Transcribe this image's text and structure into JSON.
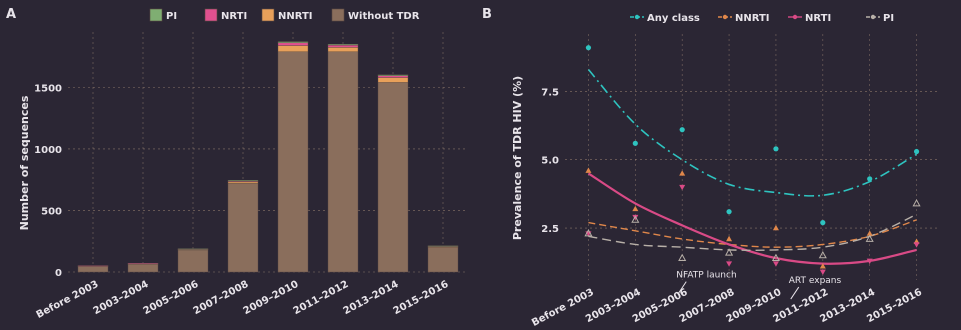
{
  "panels": {
    "a": {
      "letter": "A"
    },
    "b": {
      "letter": "B"
    }
  },
  "colors": {
    "background": "#2b2634",
    "plot_bg": "#2b2634",
    "grid": "#c8a98c",
    "text": "#e8e4ea",
    "pi": "#7fae72",
    "nrti": "#e0508f",
    "nnrti": "#e8a05a",
    "without_tdr": "#8a6e5c",
    "any_class": "#2ec4c0",
    "nnrti_line": "#e0874a",
    "nrti_line": "#d94a86",
    "pi_line": "#b8b0a8"
  },
  "chart_data": [
    {
      "type": "bar",
      "stacked": true,
      "ylabel": "Number of sequences",
      "xlabel": "",
      "ylim": [
        0,
        1950
      ],
      "yticks": [
        0,
        500,
        1000,
        1500
      ],
      "grid": true,
      "legend_position": "top",
      "categories": [
        "Before 2003",
        "2003–2004",
        "2005–2006",
        "2007–2008",
        "2009–2010",
        "2011–2012",
        "2013–2014",
        "2015–2016"
      ],
      "series": [
        {
          "name": "PI",
          "values": [
            0,
            0,
            2,
            5,
            10,
            8,
            8,
            2
          ]
        },
        {
          "name": "NRTI",
          "values": [
            1,
            1,
            3,
            8,
            22,
            18,
            15,
            4
          ]
        },
        {
          "name": "NNRTI",
          "values": [
            1,
            2,
            5,
            12,
            50,
            35,
            40,
            8
          ]
        },
        {
          "name": "Without TDR",
          "values": [
            50,
            68,
            180,
            720,
            1790,
            1790,
            1540,
            200
          ]
        }
      ]
    },
    {
      "type": "line",
      "ylabel": "Prevalence of TDR HIV (%)",
      "xlabel": "",
      "ylim": [
        0.6,
        9.6
      ],
      "yticks": [
        2.5,
        5.0,
        7.5
      ],
      "ytick_labels": [
        "2.5",
        "5.0",
        "7.5"
      ],
      "grid": true,
      "legend_position": "top",
      "categories": [
        "Before 2003",
        "2003–2004",
        "2005–2006",
        "2007–2008",
        "2009–2010",
        "2011–2012",
        "2013–2014",
        "2015–2016"
      ],
      "series": [
        {
          "name": "Any class",
          "points": [
            9.1,
            5.6,
            6.1,
            3.1,
            5.4,
            2.7,
            4.3,
            5.3
          ],
          "trend": [
            8.3,
            6.3,
            5.0,
            4.1,
            3.8,
            3.7,
            4.2,
            5.2
          ]
        },
        {
          "name": "NNRTI",
          "points": [
            4.6,
            3.2,
            4.5,
            2.1,
            2.5,
            1.1,
            2.3,
            2.0
          ],
          "trend": [
            2.7,
            2.4,
            2.1,
            1.9,
            1.8,
            1.9,
            2.2,
            2.8
          ]
        },
        {
          "name": "NRTI",
          "points": [
            2.3,
            2.9,
            4.0,
            1.2,
            1.2,
            0.9,
            1.3,
            1.9
          ],
          "trend": [
            4.5,
            3.4,
            2.6,
            1.9,
            1.4,
            1.2,
            1.3,
            1.7
          ]
        },
        {
          "name": "PI",
          "points": [
            2.3,
            2.8,
            1.4,
            1.6,
            1.4,
            1.5,
            2.1,
            3.4
          ],
          "trend": [
            2.2,
            1.9,
            1.8,
            1.7,
            1.7,
            1.8,
            2.2,
            3.0
          ]
        }
      ],
      "annotations": [
        {
          "text": "NFATP launch",
          "category_index": 2.3,
          "y": 1.2
        },
        {
          "text": "ART expans",
          "category_index": 4.7,
          "y": 1.0
        }
      ]
    }
  ]
}
